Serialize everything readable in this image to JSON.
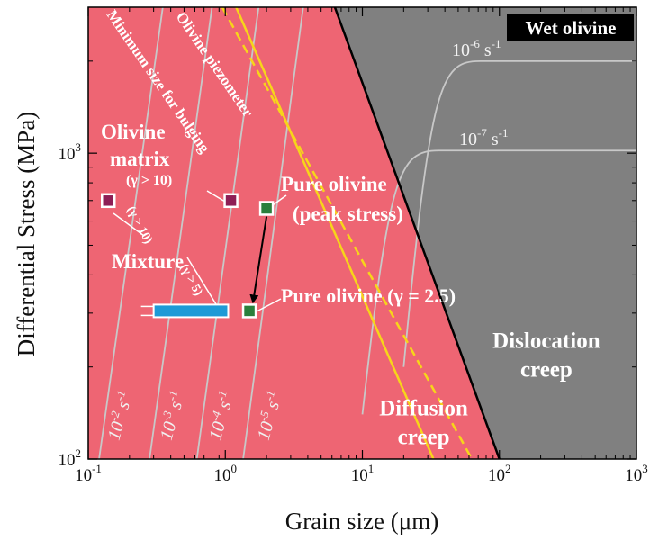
{
  "chart_data": {
    "type": "line",
    "title": "Wet olivine",
    "xlabel": "Grain size (μm)",
    "ylabel": "Differential Stress (MPa)",
    "x_scale": "log",
    "y_scale": "log",
    "xlim": [
      0.1,
      1000
    ],
    "ylim": [
      100,
      3000
    ],
    "x_ticks": [
      {
        "value": 0.1,
        "base": "10",
        "exp": "-1"
      },
      {
        "value": 1,
        "base": "10",
        "exp": "0"
      },
      {
        "value": 10,
        "base": "10",
        "exp": "1"
      },
      {
        "value": 100,
        "base": "10",
        "exp": "2"
      },
      {
        "value": 1000,
        "base": "10",
        "exp": "3"
      }
    ],
    "y_ticks": [
      {
        "value": 100,
        "base": "10",
        "exp": "2"
      },
      {
        "value": 1000,
        "base": "10",
        "exp": "3"
      }
    ],
    "regions": [
      {
        "label": "Diffusion creep",
        "line1": "Diffusion",
        "line2": "creep",
        "color": "#ee6573",
        "at": [
          28,
          135
        ]
      },
      {
        "label": "Dislocation creep",
        "line1": "Dislocation",
        "line2": "creep",
        "color": "#808080",
        "at": [
          220,
          225
        ]
      }
    ],
    "boundary": {
      "x": [
        6.3,
        100
      ],
      "y": [
        3000,
        100
      ],
      "color": "#000000"
    },
    "piezometer": {
      "label": "Olivine piezometer",
      "color": "#f7d51a",
      "x": [
        1.2,
        33
      ],
      "y": [
        3000,
        100
      ]
    },
    "bulging_min": {
      "label": "Minimum size for bulging",
      "color": "#f7d51a",
      "dashed": true,
      "x": [
        0.95,
        63
      ],
      "y": [
        3000,
        100
      ]
    },
    "diffusion_isolines": [
      {
        "rate": "10-2 s-1",
        "base": "10",
        "exp": "-2",
        "unit": "s",
        "unit_exp": "-1",
        "x": [
          0.12,
          0.35
        ],
        "y": [
          100,
          3000
        ]
      },
      {
        "rate": "10-3 s-1",
        "base": "10",
        "exp": "-3",
        "unit": "s",
        "unit_exp": "-1",
        "x": [
          0.28,
          0.8
        ],
        "y": [
          100,
          3000
        ]
      },
      {
        "rate": "10-4 s-1",
        "base": "10",
        "exp": "-4",
        "unit": "s",
        "unit_exp": "-1",
        "x": [
          0.62,
          1.75
        ],
        "y": [
          100,
          3000
        ]
      },
      {
        "rate": "10-5 s-1",
        "base": "10",
        "exp": "-5",
        "unit": "s",
        "unit_exp": "-1",
        "x": [
          1.35,
          3.7
        ],
        "y": [
          100,
          3000
        ]
      }
    ],
    "dislocation_isolines": [
      {
        "rate": "10-6 s-1",
        "base": "10",
        "exp": "-6",
        "unit": "s",
        "unit_exp": "-1",
        "stress": 2000,
        "x_start": 20,
        "y_start": 200
      },
      {
        "rate": "10-7 s-1",
        "base": "10",
        "exp": "-7",
        "unit": "s",
        "unit_exp": "-1",
        "stress": 1020,
        "x_start": 10,
        "y_start": 140
      }
    ],
    "points": [
      {
        "name": "Olivine matrix",
        "x": 1.1,
        "y": 700,
        "color": "#8e1e55",
        "labels": [
          "Olivine",
          "matrix",
          "(γ > 10)"
        ]
      },
      {
        "name": "Mixture (γ > 10)",
        "x": 0.14,
        "y": 700,
        "color": "#8e1e55",
        "labels": [
          "Mixture"
        ]
      },
      {
        "name": "Pure olivine (peak stress)",
        "x": 2.0,
        "y": 660,
        "color": "#2b7f3c",
        "labels": [
          "Pure olivine",
          "(peak stress)"
        ]
      },
      {
        "name": "Pure olivine (γ = 2.5)",
        "x": 1.5,
        "y": 305,
        "color": "#2b7f3c",
        "labels": [
          "Pure olivine (γ = 2.5)"
        ]
      }
    ],
    "mixture_range": {
      "label": "Mixture (γ > 5)",
      "x": [
        0.3,
        1.05
      ],
      "y": 305,
      "color": "#1d9ad6"
    },
    "annotations": {
      "mixture_gamma10": "(γ > 10)",
      "mixture_gamma5": "(γ > 5)"
    },
    "grid": false,
    "legend": "none"
  }
}
